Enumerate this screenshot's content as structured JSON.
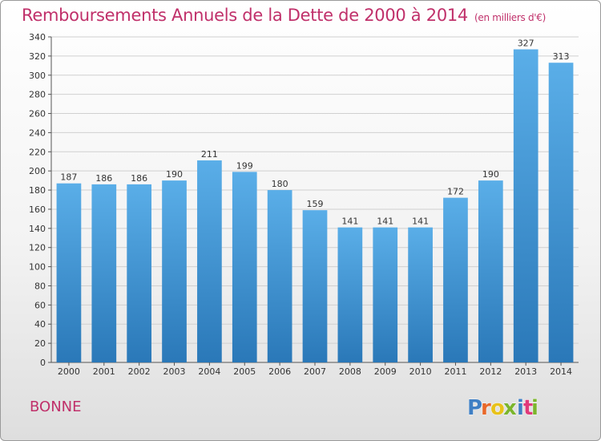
{
  "chart_data": {
    "type": "bar",
    "title": "Remboursements Annuels de la Dette de 2000 à 2014",
    "unit_note": "(en milliers d'€)",
    "categories": [
      "2000",
      "2001",
      "2002",
      "2003",
      "2004",
      "2005",
      "2006",
      "2007",
      "2008",
      "2009",
      "2010",
      "2011",
      "2012",
      "2013",
      "2014"
    ],
    "values": [
      187,
      186,
      186,
      190,
      211,
      199,
      180,
      159,
      141,
      141,
      141,
      172,
      190,
      327,
      313
    ],
    "ylim": [
      0,
      340
    ],
    "ytick_step": 20,
    "grid": true,
    "xlabel": "",
    "ylabel": ""
  },
  "commune": "BONNE",
  "logo": {
    "text": "Proxiti",
    "letter_colors": [
      "#3f7fc4",
      "#e8682a",
      "#e8c21a",
      "#7bb52d",
      "#3f7fc4",
      "#e03a7a",
      "#7bb52d"
    ]
  },
  "colors": {
    "bar_top": "#5aaee8",
    "bar_bottom": "#2a78b8",
    "title": "#c0306a",
    "grid": "#d0d0d0"
  }
}
